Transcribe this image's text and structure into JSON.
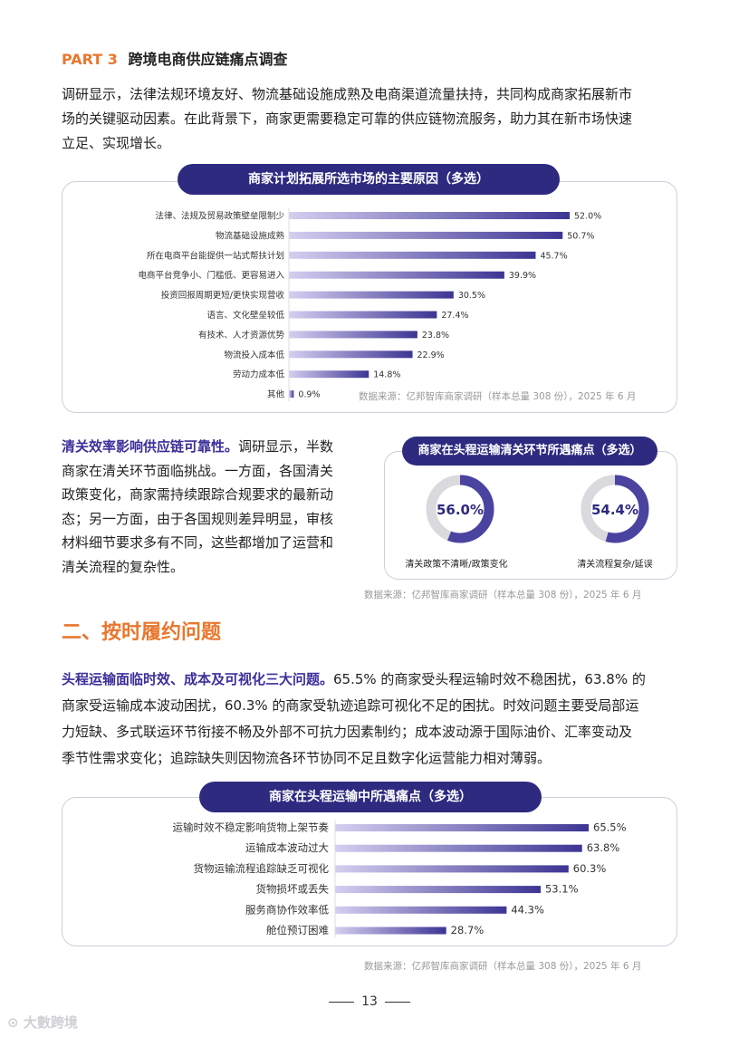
{
  "part": {
    "num": "PART 3",
    "title": "跨境电商供应链痛点调查"
  },
  "intro": "调研显示，法律法规环境友好、物流基础设施成熟及电商渠道流量扶持，共同构成商家拓展新市场的关键驱动因素。在此背景下，商家更需要稳定可靠的供应链物流服务，助力其在新市场快速立足、实现增长。",
  "intro_lines": [
    "调研显示，法律法规环境友好、物流基础设施成熟及电商渠道流量扶持，共同构成商家拓展新市",
    "场的关键驱动因素。在此背景下，商家更需要稳定可靠的供应链物流服务，助力其在新市场快速",
    "立足、实现增长。"
  ],
  "chart1_title": "商家计划拓展所选市场的主要原因（多选）",
  "chart2_title": "商家在头程运输清关环节所遇痛点（多选）",
  "chart3_title": "商家在头程运输中所遇痛点（多选）",
  "source": "数据来源：亿邦智库商家调研（样本总量 308 份），2025 年 6 月",
  "customs": {
    "lead": "清关效率影响供应链可靠性。",
    "lines": [
      "调研显示，半数",
      "商家在清关环节面临挑战。一方面，各国清关",
      "政策变化，商家需持续跟踪合规要求的最新动",
      "态；另一方面，由于各国规则差异明显，审核",
      "材料细节要求多有不同，这些都增加了运营和",
      "清关流程的复杂性。"
    ]
  },
  "section2": {
    "title": "二、按时履约问题"
  },
  "fulfill": {
    "lead": "头程运输面临时效、成本及可视化三大问题。",
    "lines": [
      "65.5% 的商家受头程运输时效不稳困扰，63.8% 的",
      "商家受运输成本波动困扰，60.3% 的商家受轨迹追踪可视化不足的困扰。时效问题主要受局部运",
      "力短缺、多式联运环节衔接不畅及外部不可抗力因素制约；成本波动源于国际油价、汇率变动及",
      "季节性需求变化；追踪缺失则因物流各环节协同不足且数字化运营能力相对薄弱。"
    ]
  },
  "page_number": "13",
  "watermark": "大數跨境",
  "colors": {
    "accent": "#e8772e",
    "navy": "#2d2a80",
    "bar_start": "#c9c4ec",
    "bar_end": "#3d3593",
    "lead": "#3b2f9a"
  },
  "chart_data": [
    {
      "type": "bar",
      "orientation": "horizontal",
      "title": "商家计划拓展所选市场的主要原因（多选）",
      "categories": [
        "法律、法规及贸易政策壁垒限制少",
        "物流基础设施成熟",
        "所在电商平台能提供一站式帮扶计划",
        "电商平台竞争小、门槛低、更容易进入",
        "投资回报周期更短/更快实现营收",
        "语言、文化壁垒较低",
        "有技术、人才资源优势",
        "物流投入成本低",
        "劳动力成本低",
        "其他"
      ],
      "values": [
        52.0,
        50.7,
        45.7,
        39.9,
        30.5,
        27.4,
        23.8,
        22.9,
        14.8,
        0.9
      ],
      "value_labels": [
        "52.0%",
        "50.7%",
        "45.7%",
        "39.9%",
        "30.5%",
        "27.4%",
        "23.8%",
        "22.9%",
        "14.8%",
        "0.9%"
      ],
      "unit": "%",
      "xlim": [
        0,
        52
      ]
    },
    {
      "type": "pie",
      "subtype": "donut",
      "title": "商家在头程运输清关环节所遇痛点（多选）",
      "items": [
        {
          "name": "清关政策不清晰/政策变化",
          "value": 56.0,
          "label": "56.0%"
        },
        {
          "name": "清关流程复杂/延误",
          "value": 54.4,
          "label": "54.4%"
        }
      ],
      "unit": "%"
    },
    {
      "type": "bar",
      "orientation": "horizontal",
      "title": "商家在头程运输中所遇痛点（多选）",
      "categories": [
        "运输时效不稳定影响货物上架节奏",
        "运输成本波动过大",
        "货物运输流程追踪缺乏可视化",
        "货物损坏或丢失",
        "服务商协作效率低",
        "舱位预订困难"
      ],
      "values": [
        65.5,
        63.8,
        60.3,
        53.1,
        44.3,
        28.7
      ],
      "value_labels": [
        "65.5%",
        "63.8%",
        "60.3%",
        "53.1%",
        "44.3%",
        "28.7%"
      ],
      "unit": "%",
      "xlim": [
        0,
        65.5
      ]
    }
  ]
}
